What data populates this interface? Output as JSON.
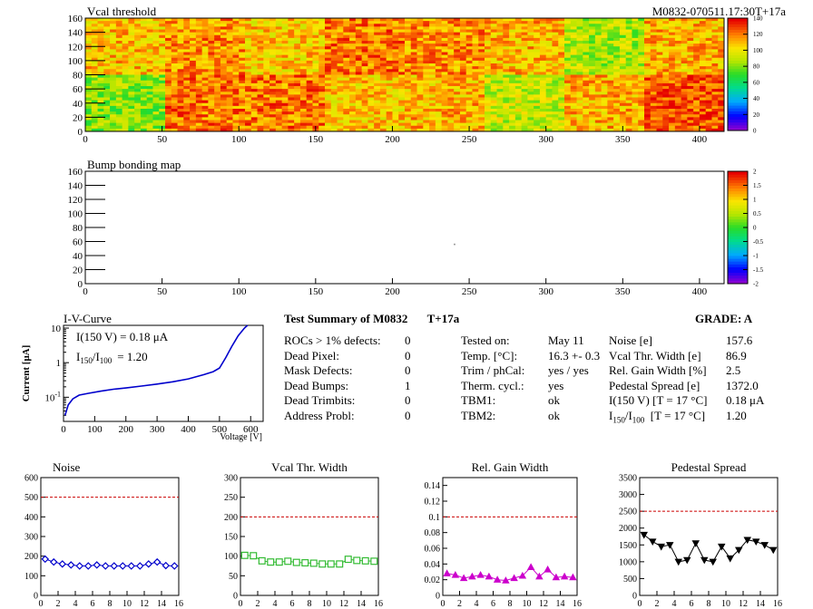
{
  "header": {
    "module_id": "M0832-070511.17:30T+17a"
  },
  "chart_data": [
    {
      "type": "heatmap",
      "title": "Vcal threshold",
      "x_ticks": [
        0,
        50,
        100,
        150,
        200,
        250,
        300,
        350,
        400
      ],
      "y_ticks": [
        0,
        20,
        40,
        60,
        80,
        100,
        120,
        140,
        160
      ],
      "xlim": [
        0,
        416
      ],
      "ylim": [
        0,
        160
      ],
      "zlim": [
        0,
        140
      ],
      "z_ticks": [
        0,
        20,
        40,
        60,
        80,
        100,
        120,
        140
      ],
      "roc_grid": {
        "columns": 8,
        "rows": 2,
        "col_width": 52,
        "row_height": 80
      },
      "roc_mean_levels_top": [
        110,
        118,
        108,
        122,
        118,
        112,
        88,
        112
      ],
      "roc_mean_levels_bottom": [
        82,
        122,
        122,
        108,
        112,
        92,
        112,
        128
      ]
    },
    {
      "type": "heatmap",
      "title": "Bump bonding map",
      "x_ticks": [
        0,
        50,
        100,
        150,
        200,
        250,
        300,
        350,
        400
      ],
      "y_ticks": [
        0,
        20,
        40,
        60,
        80,
        100,
        120,
        140,
        160
      ],
      "xlim": [
        0,
        416
      ],
      "ylim": [
        0,
        160
      ],
      "zlim": [
        -2,
        2
      ],
      "z_ticks": [
        "-2",
        "-1.5",
        "-1",
        "-0.5",
        "0",
        "0.5",
        "1",
        "1.5",
        "2"
      ],
      "marked_pixels": [
        {
          "x": 240,
          "y": 57
        }
      ]
    },
    {
      "type": "line",
      "title": "I-V-Curve",
      "xlabel": "Voltage [V]",
      "ylabel": "Current [μA]",
      "yscale": "log",
      "xlim": [
        0,
        640
      ],
      "ylim": [
        0.02,
        12
      ],
      "x_ticks": [
        "0",
        "100",
        "200",
        "300",
        "400",
        "500",
        "600"
      ],
      "y_ticks": [
        {
          "v": 0.1,
          "label": "10-1"
        },
        {
          "v": 1,
          "label": "1"
        },
        {
          "v": 10,
          "label": "10"
        }
      ],
      "annotation_1": "I(150 V) = 0.18 μA",
      "annotation_2_prefix": "I",
      "annotation_2_sub_a": "150",
      "annotation_2_mid": "/I",
      "annotation_2_sub_b": "100",
      "annotation_2_value": "=  1.20",
      "x": [
        5,
        15,
        30,
        50,
        80,
        120,
        160,
        200,
        250,
        300,
        350,
        400,
        450,
        480,
        500,
        520,
        540,
        560,
        580,
        590
      ],
      "y": [
        0.03,
        0.06,
        0.09,
        0.115,
        0.13,
        0.15,
        0.17,
        0.185,
        0.21,
        0.24,
        0.28,
        0.34,
        0.45,
        0.55,
        0.7,
        1.4,
        3.0,
        6.0,
        10.0,
        12.0
      ]
    },
    {
      "type": "line",
      "title": "Noise",
      "xlim": [
        0,
        16
      ],
      "ylim": [
        0,
        600
      ],
      "x_ticks": [
        0,
        2,
        4,
        6,
        8,
        10,
        12,
        14,
        16
      ],
      "y_ticks": [
        0,
        100,
        200,
        300,
        400,
        500,
        600
      ],
      "limit_line": 500,
      "marker": "diamond",
      "color": "#0000cc",
      "x": [
        0.5,
        1.5,
        2.5,
        3.5,
        4.5,
        5.5,
        6.5,
        7.5,
        8.5,
        9.5,
        10.5,
        11.5,
        12.5,
        13.5,
        14.5,
        15.5
      ],
      "y": [
        185,
        170,
        160,
        155,
        150,
        150,
        155,
        150,
        150,
        150,
        150,
        150,
        160,
        170,
        152,
        150
      ]
    },
    {
      "type": "line",
      "title": "Vcal Thr. Width",
      "xlim": [
        0,
        16
      ],
      "ylim": [
        0,
        300
      ],
      "x_ticks": [
        0,
        2,
        4,
        6,
        8,
        10,
        12,
        14,
        16
      ],
      "y_ticks": [
        0,
        50,
        100,
        150,
        200,
        250,
        300
      ],
      "limit_line": 200,
      "marker": "square",
      "color": "#33bb33",
      "x": [
        0.5,
        1.5,
        2.5,
        3.5,
        4.5,
        5.5,
        6.5,
        7.5,
        8.5,
        9.5,
        10.5,
        11.5,
        12.5,
        13.5,
        14.5,
        15.5
      ],
      "y": [
        102,
        101,
        88,
        85,
        85,
        87,
        84,
        83,
        82,
        80,
        80,
        80,
        92,
        89,
        88,
        87
      ]
    },
    {
      "type": "line",
      "title": "Rel. Gain Width",
      "xlim": [
        0,
        16
      ],
      "ylim": [
        0,
        0.15
      ],
      "x_ticks": [
        0,
        2,
        4,
        6,
        8,
        10,
        12,
        14,
        16
      ],
      "y_ticks": [
        0,
        0.02,
        0.04,
        0.06,
        0.08,
        0.1,
        0.12,
        0.14
      ],
      "limit_line": 0.1,
      "marker": "triangle",
      "color": "#cc00cc",
      "x": [
        0.5,
        1.5,
        2.5,
        3.5,
        4.5,
        5.5,
        6.5,
        7.5,
        8.5,
        9.5,
        10.5,
        11.5,
        12.5,
        13.5,
        14.5,
        15.5
      ],
      "y": [
        0.028,
        0.026,
        0.022,
        0.024,
        0.026,
        0.024,
        0.02,
        0.019,
        0.022,
        0.025,
        0.036,
        0.024,
        0.033,
        0.023,
        0.024,
        0.023
      ]
    },
    {
      "type": "line",
      "title": "Pedestal Spread",
      "xlim": [
        0,
        16
      ],
      "ylim": [
        0,
        3500
      ],
      "x_ticks": [
        0,
        2,
        4,
        6,
        8,
        10,
        12,
        14,
        16
      ],
      "y_ticks": [
        0,
        500,
        1000,
        1500,
        2000,
        2500,
        3000,
        3500
      ],
      "limit_line": 2500,
      "marker": "triangle-down",
      "color": "#000000",
      "x": [
        0.5,
        1.5,
        2.5,
        3.5,
        4.5,
        5.5,
        6.5,
        7.5,
        8.5,
        9.5,
        10.5,
        11.5,
        12.5,
        13.5,
        14.5,
        15.5
      ],
      "y": [
        1800,
        1600,
        1450,
        1500,
        1000,
        1050,
        1550,
        1050,
        1000,
        1450,
        1100,
        1350,
        1650,
        1600,
        1500,
        1350
      ]
    }
  ],
  "summary": {
    "title": "Test Summary of M0832",
    "title_tag": "T+17a",
    "grade_label": "GRADE:  A",
    "defects": [
      {
        "label": "ROCs > 1% defects:",
        "value": "0"
      },
      {
        "label": "Dead Pixel:",
        "value": "0"
      },
      {
        "label": "Mask Defects:",
        "value": "0"
      },
      {
        "label": "Dead Bumps:",
        "value": "1"
      },
      {
        "label": "Dead Trimbits:",
        "value": "0"
      },
      {
        "label": "Address Probl:",
        "value": "0"
      }
    ],
    "conditions": [
      {
        "label": "Tested on:",
        "value": "May 11"
      },
      {
        "label": "Temp. [°C]:",
        "value": "16.3 +- 0.3"
      },
      {
        "label": "Trim / phCal:",
        "value": "yes / yes"
      },
      {
        "label": "Therm. cycl.:",
        "value": "yes"
      },
      {
        "label": "TBM1:",
        "value": "ok"
      },
      {
        "label": "TBM2:",
        "value": "ok"
      }
    ],
    "results": [
      {
        "label": "Noise [e]",
        "value": "157.6"
      },
      {
        "label": "Vcal Thr. Width [e]",
        "value": "86.9"
      },
      {
        "label": "Rel. Gain Width [%]",
        "value": "2.5"
      },
      {
        "label": "Pedestal Spread [e]",
        "value": "1372.0"
      },
      {
        "label": "I(150 V) [T = 17 °C]",
        "value": "0.18 μA"
      },
      {
        "label_prefix": "I",
        "label_sub_a": "150",
        "label_mid": "/I",
        "label_sub_b": "100",
        "label_suffix": "  [T = 17 °C]",
        "value": "1.20"
      }
    ]
  }
}
